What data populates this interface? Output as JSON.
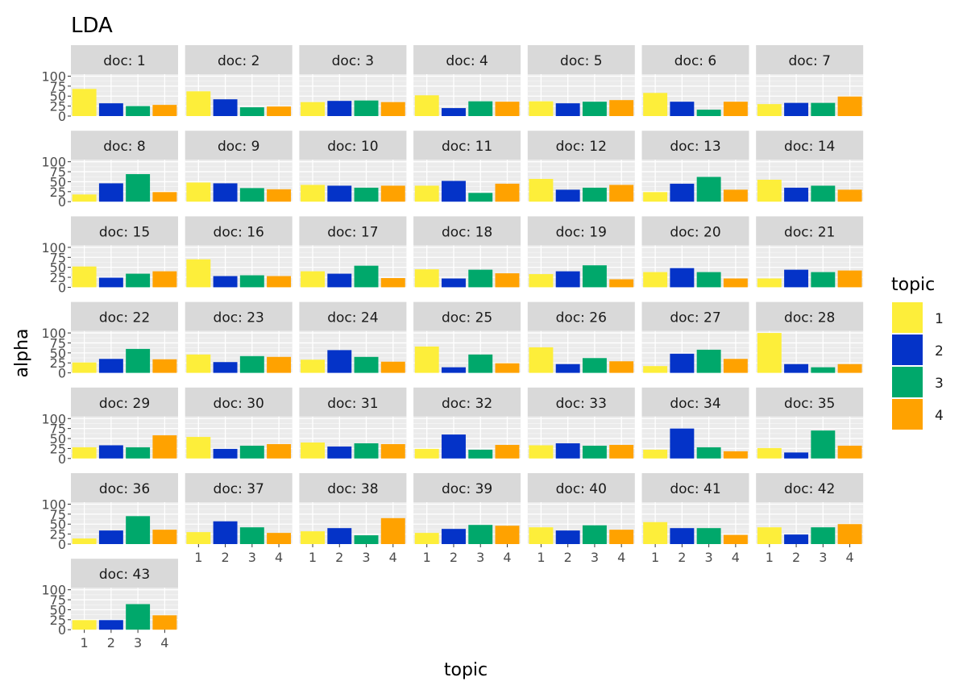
{
  "chart_data": {
    "type": "bar",
    "title": "LDA",
    "xlabel": "topic",
    "ylabel": "alpha",
    "facet_label_prefix": "doc: ",
    "categories": [
      "1",
      "2",
      "3",
      "4"
    ],
    "y_ticks": [
      0,
      25,
      50,
      75,
      100
    ],
    "y_tick_labels": [
      "0",
      "25",
      "50",
      "75",
      "100"
    ],
    "ylim": [
      0,
      105
    ],
    "grid": true,
    "legend": {
      "title": "topic",
      "position": "right",
      "entries": [
        "1",
        "2",
        "3",
        "4"
      ]
    },
    "colors": {
      "1": "#FDEE3A",
      "2": "#0433C8",
      "3": "#00A86B",
      "4": "#FFA200"
    },
    "facets": [
      {
        "doc": "1",
        "values": [
          68,
          32,
          25,
          28
        ]
      },
      {
        "doc": "2",
        "values": [
          62,
          42,
          22,
          24
        ]
      },
      {
        "doc": "3",
        "values": [
          35,
          38,
          39,
          35
        ]
      },
      {
        "doc": "4",
        "values": [
          52,
          20,
          37,
          36
        ]
      },
      {
        "doc": "5",
        "values": [
          37,
          32,
          36,
          40
        ]
      },
      {
        "doc": "6",
        "values": [
          58,
          36,
          16,
          36
        ]
      },
      {
        "doc": "7",
        "values": [
          30,
          33,
          33,
          49
        ]
      },
      {
        "doc": "8",
        "values": [
          18,
          46,
          69,
          24
        ]
      },
      {
        "doc": "9",
        "values": [
          48,
          46,
          34,
          31
        ]
      },
      {
        "doc": "10",
        "values": [
          42,
          40,
          35,
          40
        ]
      },
      {
        "doc": "11",
        "values": [
          40,
          52,
          22,
          45
        ]
      },
      {
        "doc": "12",
        "values": [
          57,
          30,
          35,
          42
        ]
      },
      {
        "doc": "13",
        "values": [
          24,
          45,
          62,
          30
        ]
      },
      {
        "doc": "14",
        "values": [
          55,
          35,
          40,
          30
        ]
      },
      {
        "doc": "15",
        "values": [
          52,
          24,
          34,
          40
        ]
      },
      {
        "doc": "16",
        "values": [
          70,
          28,
          30,
          28
        ]
      },
      {
        "doc": "17",
        "values": [
          40,
          34,
          54,
          23
        ]
      },
      {
        "doc": "18",
        "values": [
          45,
          22,
          44,
          35
        ]
      },
      {
        "doc": "19",
        "values": [
          33,
          40,
          55,
          20
        ]
      },
      {
        "doc": "20",
        "values": [
          38,
          48,
          38,
          22
        ]
      },
      {
        "doc": "21",
        "values": [
          22,
          44,
          38,
          42
        ]
      },
      {
        "doc": "22",
        "values": [
          26,
          35,
          60,
          34
        ]
      },
      {
        "doc": "23",
        "values": [
          46,
          27,
          42,
          40
        ]
      },
      {
        "doc": "24",
        "values": [
          33,
          57,
          40,
          28
        ]
      },
      {
        "doc": "25",
        "values": [
          66,
          14,
          46,
          24
        ]
      },
      {
        "doc": "26",
        "values": [
          64,
          22,
          37,
          29
        ]
      },
      {
        "doc": "27",
        "values": [
          17,
          48,
          58,
          35
        ]
      },
      {
        "doc": "28",
        "values": [
          100,
          22,
          14,
          22
        ]
      },
      {
        "doc": "29",
        "values": [
          28,
          33,
          28,
          58
        ]
      },
      {
        "doc": "30",
        "values": [
          54,
          24,
          32,
          36
        ]
      },
      {
        "doc": "31",
        "values": [
          40,
          30,
          38,
          36
        ]
      },
      {
        "doc": "32",
        "values": [
          24,
          60,
          22,
          34
        ]
      },
      {
        "doc": "33",
        "values": [
          33,
          38,
          32,
          34
        ]
      },
      {
        "doc": "34",
        "values": [
          22,
          75,
          28,
          18
        ]
      },
      {
        "doc": "35",
        "values": [
          26,
          15,
          70,
          32
        ]
      },
      {
        "doc": "36",
        "values": [
          14,
          34,
          70,
          36
        ]
      },
      {
        "doc": "37",
        "values": [
          30,
          57,
          42,
          28
        ]
      },
      {
        "doc": "38",
        "values": [
          32,
          40,
          22,
          65
        ]
      },
      {
        "doc": "39",
        "values": [
          28,
          38,
          48,
          46
        ]
      },
      {
        "doc": "40",
        "values": [
          42,
          34,
          47,
          36
        ]
      },
      {
        "doc": "41",
        "values": [
          55,
          40,
          40,
          23
        ]
      },
      {
        "doc": "42",
        "values": [
          42,
          24,
          42,
          50
        ]
      },
      {
        "doc": "43",
        "values": [
          24,
          24,
          64,
          36
        ]
      }
    ]
  }
}
